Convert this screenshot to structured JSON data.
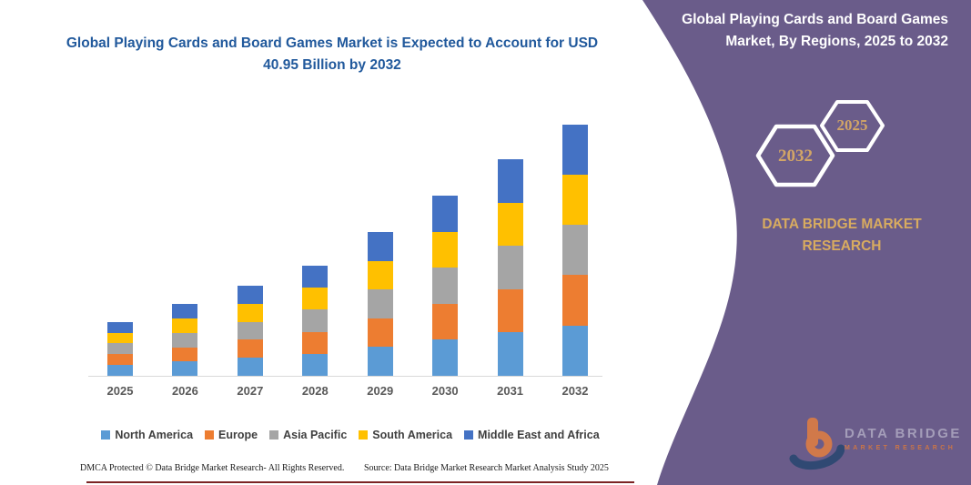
{
  "chart_data": {
    "type": "bar",
    "subtype": "stacked-column",
    "title": "Global Playing Cards and Board Games Market is Expected to Account for USD 40.95 Billion by 2032",
    "unit": "USD Billion",
    "categories": [
      "2025",
      "2026",
      "2027",
      "2028",
      "2029",
      "2030",
      "2031",
      "2032"
    ],
    "series": [
      {
        "name": "North America",
        "color": "#5B9BD5",
        "values": [
          1.76,
          2.33,
          2.93,
          3.58,
          4.68,
          5.86,
          7.05,
          8.19
        ]
      },
      {
        "name": "Europe",
        "color": "#ED7D31",
        "values": [
          1.76,
          2.33,
          2.93,
          3.58,
          4.68,
          5.86,
          7.05,
          8.19
        ]
      },
      {
        "name": "Asia Pacific",
        "color": "#A5A5A5",
        "values": [
          1.76,
          2.33,
          2.93,
          3.58,
          4.68,
          5.86,
          7.05,
          8.19
        ]
      },
      {
        "name": "South America",
        "color": "#FFC000",
        "values": [
          1.76,
          2.33,
          2.93,
          3.58,
          4.68,
          5.86,
          7.05,
          8.19
        ]
      },
      {
        "name": "Middle East and Africa",
        "color": "#4472C4",
        "values": [
          1.76,
          2.33,
          2.93,
          3.58,
          4.68,
          5.86,
          7.05,
          8.19
        ]
      }
    ],
    "totals": [
      8.8,
      11.65,
      14.65,
      17.9,
      23.4,
      29.3,
      35.25,
      40.95
    ],
    "ylim": [
      0,
      41
    ],
    "gridlines": false,
    "axis_line_color": "#D9D9D9",
    "legend_position": "bottom"
  },
  "footer": {
    "dmca": "DMCA Protected © Data Bridge Market Research-  All Rights Reserved.",
    "source": "Source: Data Bridge Market Research  Market Analysis Study 2025"
  },
  "panel": {
    "heading": "Global Playing Cards and Board Games Market, By Regions, 2025 to 2032",
    "hexagon_large_label": "2032",
    "hexagon_small_label": "2025",
    "brand_line1": "DATA BRIDGE MARKET",
    "brand_line2": "RESEARCH",
    "colors": {
      "purple": "#6A5C8A",
      "gold": "#D8AB60",
      "hex_outline": "#FFFFFF"
    }
  },
  "logo": {
    "line1": "DATA BRIDGE",
    "line2": "MARKET RESEARCH",
    "colors": {
      "orange": "#E8803C",
      "navy": "#24466E"
    }
  }
}
